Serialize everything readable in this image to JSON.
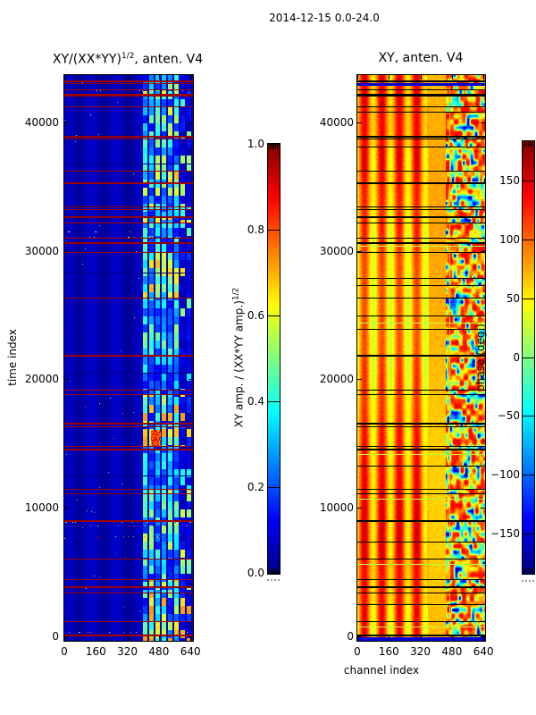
{
  "figure": {
    "title": "2014-12-15 0.0-24.0"
  },
  "chart_data": [
    {
      "type": "heatmap",
      "panel": "left",
      "title_prefix": "XY/(XX*YY)",
      "title_sup": "1/2",
      "title_suffix": ", anten. V4",
      "xlabel": "",
      "ylabel": "time index",
      "xlim": [
        0,
        652
      ],
      "ylim": [
        0,
        43690
      ],
      "xticks": [
        0,
        160,
        320,
        480,
        640
      ],
      "xtick_labels": [
        "0",
        "160",
        "320",
        "480",
        "640"
      ],
      "yticks": [
        0,
        10000,
        20000,
        30000,
        40000
      ],
      "ytick_labels": [
        "0",
        "10000",
        "20000",
        "30000",
        "40000"
      ],
      "colormap": "jet",
      "grid": false,
      "colorbar": {
        "label_prefix": "XY amp. / (XX*YY amp.)",
        "label_sup": "1/2",
        "range": [
          0.0,
          1.0
        ],
        "ticks": [
          1.0,
          0.8,
          0.6,
          0.4,
          0.2,
          0.0
        ],
        "tick_labels": [
          "1.0",
          "0.8",
          "0.6",
          "0.4",
          "0.2",
          "0.0"
        ]
      },
      "features": {
        "background_value_range": [
          0.02,
          0.1
        ],
        "bright_band_channels": [
          400,
          650
        ],
        "bright_band_value_range": [
          0.1,
          0.7
        ],
        "flagged_row_value": 1.0,
        "flagged_times": [
          43290,
          43080,
          42570,
          42220,
          42080,
          41250,
          38960,
          38750,
          36250,
          35340,
          33470,
          33260,
          32710,
          32220,
          31040,
          30690,
          29930,
          26390,
          21940,
          19230,
          18820,
          16600,
          16320,
          14790,
          14580,
          11460,
          11110,
          9030,
          6040,
          4440,
          3890,
          3400,
          1180,
          140
        ],
        "dark_row_times": [
          36800,
          28300,
          20500,
          12500
        ],
        "hot_spot": {
          "time_range": [
            14900,
            16100
          ],
          "channel_range": [
            438,
            486
          ],
          "value_range": [
            0.7,
            0.95
          ]
        },
        "speckle_times": [
          42500,
          42250,
          31500,
          31100,
          8900,
          8600,
          7800,
          350
        ]
      }
    },
    {
      "type": "heatmap",
      "panel": "right",
      "title": "XY, anten. V4",
      "xlabel": "channel index",
      "ylabel": "",
      "xlim": [
        0,
        648
      ],
      "ylim": [
        0,
        43690
      ],
      "xticks": [
        0,
        160,
        320,
        480,
        640
      ],
      "xtick_labels": [
        "0",
        "160",
        "320",
        "480",
        "640"
      ],
      "yticks": [
        0,
        10000,
        20000,
        30000,
        40000
      ],
      "ytick_labels": [
        "0",
        "10000",
        "20000",
        "30000",
        "40000"
      ],
      "colormap": "jet",
      "grid": false,
      "colorbar": {
        "label": "phase (deg.)",
        "range": [
          -183,
          183
        ],
        "ticks": [
          150,
          100,
          50,
          0,
          -50,
          -100,
          -150
        ],
        "tick_labels": [
          "150",
          "100",
          "50",
          "0",
          "−50",
          "−100",
          "−150"
        ]
      },
      "features": {
        "background_phase_range_deg": [
          45,
          140
        ],
        "band_period_channels": 88,
        "band_peak_channels": [
          34,
          122,
          211,
          299
        ],
        "plain_band_channels": [
          360,
          448
        ],
        "noisy_region_channels": [
          448,
          648
        ],
        "flagged_row_color": "#000000",
        "flagged_times": [
          43290,
          43080,
          42570,
          42220,
          42080,
          41250,
          38960,
          38750,
          36250,
          35340,
          33470,
          33260,
          32710,
          32220,
          31040,
          30690,
          29930,
          26390,
          21940,
          19230,
          18820,
          16600,
          16320,
          14790,
          14580,
          11460,
          11110,
          9030,
          6040,
          4440,
          3890,
          3400,
          1180,
          140
        ],
        "extra_black_times": [
          40800,
          38100,
          27900,
          27350,
          25000,
          23900,
          13300,
          7400,
          2500
        ],
        "green_line_times": [
          30400,
          24400,
          14200,
          10700,
          5600,
          750
        ],
        "green_line_phase_deg": 15,
        "navy_line_times": [
          43050
        ],
        "bottom_row_phase_deg": -152
      }
    }
  ]
}
